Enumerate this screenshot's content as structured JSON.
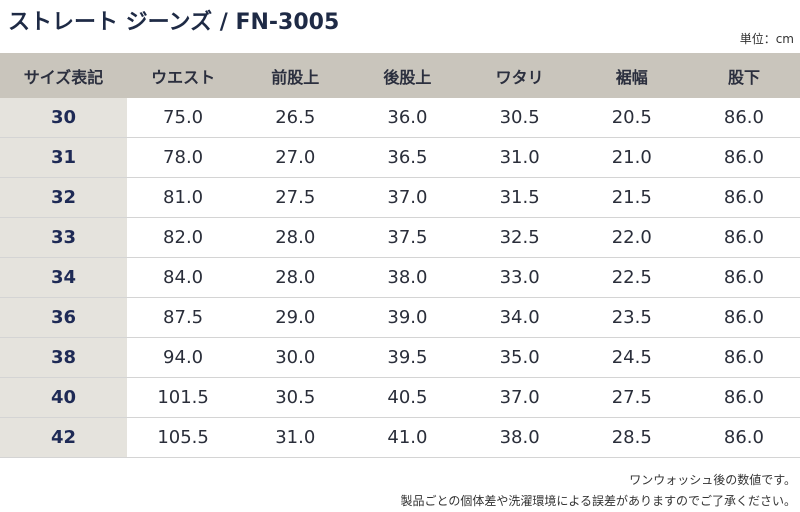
{
  "title": "ストレート ジーンズ / FN-3005",
  "unit": "単位：cm",
  "table": {
    "header": [
      "サイズ表記",
      "ウエスト",
      "前股上",
      "後股上",
      "ワタリ",
      "裾幅",
      "股下"
    ],
    "rows": [
      [
        "30",
        "75.0",
        "26.5",
        "36.0",
        "30.5",
        "20.5",
        "86.0"
      ],
      [
        "31",
        "78.0",
        "27.0",
        "36.5",
        "31.0",
        "21.0",
        "86.0"
      ],
      [
        "32",
        "81.0",
        "27.5",
        "37.0",
        "31.5",
        "21.5",
        "86.0"
      ],
      [
        "33",
        "82.0",
        "28.0",
        "37.5",
        "32.5",
        "22.0",
        "86.0"
      ],
      [
        "34",
        "84.0",
        "28.0",
        "38.0",
        "33.0",
        "22.5",
        "86.0"
      ],
      [
        "36",
        "87.5",
        "29.0",
        "39.0",
        "34.0",
        "23.5",
        "86.0"
      ],
      [
        "38",
        "94.0",
        "30.0",
        "39.5",
        "35.0",
        "24.5",
        "86.0"
      ],
      [
        "40",
        "101.5",
        "30.5",
        "40.5",
        "37.0",
        "27.5",
        "86.0"
      ],
      [
        "42",
        "105.5",
        "31.0",
        "41.0",
        "38.0",
        "28.5",
        "86.0"
      ]
    ]
  },
  "notes": [
    "ワンウォッシュ後の数値です。",
    "製品ごとの個体差や洗濯環境による誤差がありますのでご了承ください。"
  ]
}
